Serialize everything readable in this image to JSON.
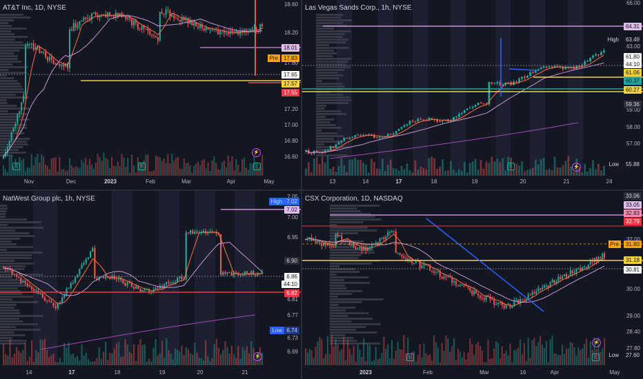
{
  "panes": [
    {
      "id": "att",
      "title": "AT&T Inc, 1D, NYSE",
      "price_ticks": [
        "18.60",
        "18.20",
        "17.80",
        "17.20",
        "17.00",
        "16.80",
        "16.60"
      ],
      "x_ticks": [
        "Nov",
        "Dec",
        "2023",
        "Feb",
        "Mar",
        "Apr",
        "May"
      ],
      "badges": [
        {
          "text": "18.01",
          "bg": "#e1bee7",
          "fg": "#131722"
        },
        {
          "text": "17.83",
          "bg": "#f7a600",
          "fg": "#131722",
          "prefix": "Pre"
        },
        {
          "text": "17.65",
          "bg": "#ffffff",
          "fg": "#131722"
        },
        {
          "text": "17.57",
          "bg": "#f5d142",
          "fg": "#131722"
        },
        {
          "text": "17.55",
          "bg": "#f23645",
          "fg": "#ffffff"
        }
      ]
    },
    {
      "id": "lvs",
      "title": "Las Vegas Sands Corp., 1h, NYSE",
      "price_ticks": [
        "63.00",
        "59.00",
        "58.00",
        "57.00"
      ],
      "x_ticks": [
        "13",
        "14",
        "17",
        "18",
        "19",
        "20",
        "21",
        "24"
      ],
      "top_tick": "66.00",
      "badges": [
        {
          "text": "64.31",
          "bg": "#e1bee7",
          "fg": "#131722"
        },
        {
          "text": "63.49",
          "bg": "#131722",
          "fg": "#d1d4dc",
          "prefix": "High"
        },
        {
          "text": "61.80",
          "bg": "#ffffff",
          "fg": "#131722"
        },
        {
          "text": "44:10",
          "bg": "#ffffff",
          "fg": "#131722"
        },
        {
          "text": "61.06",
          "bg": "#f5d142",
          "fg": "#131722"
        },
        {
          "text": "60.37",
          "bg": "#26a69a",
          "fg": "#131722"
        },
        {
          "text": "60.27",
          "bg": "#f5d142",
          "fg": "#131722"
        },
        {
          "text": "59.36",
          "bg": "#2a2e39",
          "fg": "#d1d4dc"
        },
        {
          "text": "55.88",
          "bg": "#131722",
          "fg": "#d1d4dc",
          "prefix": "Low"
        }
      ]
    },
    {
      "id": "nwg",
      "title": "NatWest Group plc, 1h, NYSE",
      "price_ticks": [
        "7.05",
        "7.00",
        "6.95",
        "6.81",
        "6.77",
        "6.73",
        "6.69"
      ],
      "x_ticks": [
        "14",
        "17",
        "18",
        "19",
        "20",
        "21"
      ],
      "badges": [
        {
          "text": "7.02",
          "bg": "#131722",
          "fg": "#d1d4dc",
          "prefix": "High"
        },
        {
          "text": "7.02",
          "bg": "#e1bee7",
          "fg": "#131722"
        },
        {
          "text": "6.90",
          "bg": "#2a2e39",
          "fg": "#d1d4dc"
        },
        {
          "text": "6.86",
          "bg": "#ffffff",
          "fg": "#131722"
        },
        {
          "text": "44:10",
          "bg": "#ffffff",
          "fg": "#131722"
        },
        {
          "text": "6.82",
          "bg": "#f23645",
          "fg": "#ffffff"
        },
        {
          "text": "6.74",
          "bg": "#131722",
          "fg": "#d1d4dc",
          "prefix": "Low"
        }
      ]
    },
    {
      "id": "csx",
      "title": "CSX Corporation, 1D, NASDAQ",
      "price_ticks": [
        "32.00",
        "30.00",
        "29.00",
        "28.40",
        "27.80"
      ],
      "x_ticks": [
        "2023",
        "Feb",
        "Mar",
        "16",
        "Apr",
        "May"
      ],
      "badges": [
        {
          "text": "33.06",
          "bg": "#2a2e39",
          "fg": "#d1d4dc"
        },
        {
          "text": "33.05",
          "bg": "#e1bee7",
          "fg": "#131722"
        },
        {
          "text": "32.83",
          "bg": "#f48fb1",
          "fg": "#131722"
        },
        {
          "text": "32.79",
          "bg": "#f23645",
          "fg": "#ffffff"
        },
        {
          "text": "31.80",
          "bg": "#f7a600",
          "fg": "#131722",
          "prefix": "Pre"
        },
        {
          "text": "31.18",
          "bg": "#f5d142",
          "fg": "#131722"
        },
        {
          "text": "30.81",
          "bg": "#ffffff",
          "fg": "#131722"
        },
        {
          "text": "27.60",
          "bg": "#131722",
          "fg": "#d1d4dc",
          "prefix": "Low"
        }
      ]
    }
  ],
  "colors": {
    "up": "#26a69a",
    "down": "#ef5350",
    "bg": "#131722",
    "grid": "#1e222d"
  }
}
